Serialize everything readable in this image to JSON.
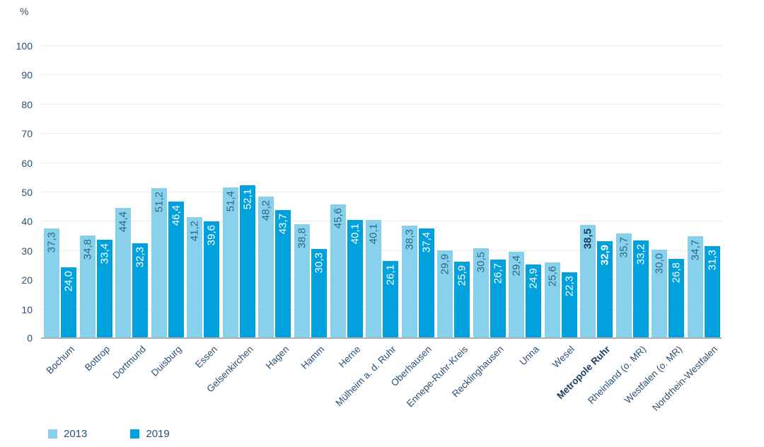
{
  "chart_data": {
    "type": "bar",
    "title": "",
    "y_axis_unit": "%",
    "ylim": [
      0,
      100
    ],
    "y_ticks": [
      100,
      90,
      80,
      70,
      60,
      50,
      40,
      30,
      20,
      10,
      0
    ],
    "grid": true,
    "legend_position": "bottom-left",
    "value_label_rotation": "vertical-bottom-to-top",
    "x_label_rotation": -45,
    "categories": [
      "Bochum",
      "Bottrop",
      "Dortmund",
      "Duisburg",
      "Essen",
      "Gelsenkirchen",
      "Hagen",
      "Hamm",
      "Herne",
      "Mülheim a. d. Ruhr",
      "Oberhausen",
      "Ennepe-Ruhr-Kreis",
      "Recklinghausen",
      "Unna",
      "Wesel",
      "Metropole Ruhr",
      "Rheinland (o. MR)",
      "Westfalen (o. MR)",
      "Nordrhein-Westfalen"
    ],
    "emphasized_category": "Metropole Ruhr",
    "emphasized_index": 15,
    "series": [
      {
        "name": "2013",
        "color": "#88D1EC",
        "values": [
          37.3,
          34.8,
          44.4,
          51.2,
          41.2,
          51.4,
          48.2,
          38.8,
          45.6,
          40.1,
          38.3,
          29.9,
          30.5,
          29.4,
          25.6,
          38.5,
          35.7,
          30.0,
          34.7
        ],
        "labels": [
          "37,3",
          "34,8",
          "44,4",
          "51,2",
          "41,2",
          "51,4",
          "48,2",
          "38,8",
          "45,6",
          "40,1",
          "38,3",
          "29,9",
          "30,5",
          "29,4",
          "25,6",
          "38,5",
          "35,7",
          "30,0",
          "34,7"
        ]
      },
      {
        "name": "2019",
        "color": "#00A1DC",
        "values": [
          24.0,
          33.4,
          32.3,
          46.4,
          39.6,
          52.1,
          43.7,
          30.3,
          40.1,
          26.1,
          37.4,
          25.9,
          26.7,
          24.9,
          22.3,
          32.9,
          33.2,
          26.8,
          31.3
        ],
        "labels": [
          "24,0",
          "33,4",
          "32,3",
          "46,4",
          "39,6",
          "52,1",
          "43,7",
          "30,3",
          "40,1",
          "26,1",
          "37,4",
          "25,9",
          "26,7",
          "24,9",
          "22,3",
          "32,9",
          "33,2",
          "26,8",
          "31,3"
        ]
      }
    ]
  },
  "colors": {
    "bar_2013": "#88D1EC",
    "bar_2019": "#00A1DC",
    "value_label_on_light": "#2D6787",
    "value_label_on_dark": "#FFFFFF",
    "axis_text": "#2A5077",
    "emphasis_text": "#1B3D62",
    "gridline": "#ECECEC",
    "baseline": "#A9B0B7"
  },
  "legend": {
    "items": [
      {
        "label": "2013",
        "color": "#88D1EC"
      },
      {
        "label": "2019",
        "color": "#00A1DC"
      }
    ]
  }
}
